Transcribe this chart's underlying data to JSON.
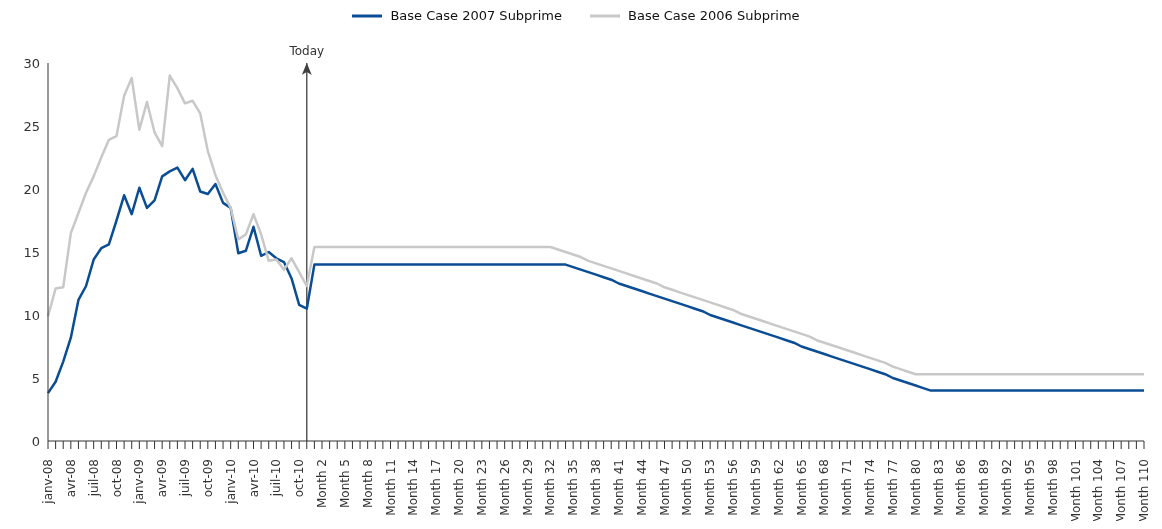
{
  "chart_data": {
    "type": "line",
    "categories": [
      "janv-08",
      null,
      null,
      "avr-08",
      null,
      null,
      "juil-08",
      null,
      null,
      "oct-08",
      null,
      null,
      "janv-09",
      null,
      null,
      "avr-09",
      null,
      null,
      "juil-09",
      null,
      null,
      "oct-09",
      null,
      null,
      "janv-10",
      null,
      null,
      "avr-10",
      null,
      null,
      "juil-10",
      null,
      null,
      "oct-10",
      null,
      null,
      "Month 2",
      null,
      null,
      "Month 5",
      null,
      null,
      "Month 8",
      null,
      null,
      "Month 11",
      null,
      null,
      "Month 14",
      null,
      null,
      "Month 17",
      null,
      null,
      "Month 20",
      null,
      null,
      "Month 23",
      null,
      null,
      "Month 26",
      null,
      null,
      "Month 29",
      null,
      null,
      "Month 32",
      null,
      null,
      "Month 35",
      null,
      null,
      "Month 38",
      null,
      null,
      "Month 41",
      null,
      null,
      "Month 44",
      null,
      null,
      "Month 47",
      null,
      null,
      "Month 50",
      null,
      null,
      "Month 53",
      null,
      null,
      "Month 56",
      null,
      null,
      "Month 59",
      null,
      null,
      "Month 62",
      null,
      null,
      "Month 65",
      null,
      null,
      "Month 68",
      null,
      null,
      "Month 71",
      null,
      null,
      "Month 74",
      null,
      null,
      "Month 77",
      null,
      null,
      "Month 80",
      null,
      null,
      "Month 83",
      null,
      null,
      "Month 86",
      null,
      null,
      "Month 89",
      null,
      null,
      "Month 92",
      null,
      null,
      "Month 95",
      null,
      null,
      "Month 98",
      null,
      null,
      "Month 101",
      null,
      null,
      "Month 104",
      null,
      null,
      "Month 107",
      null,
      null,
      "Month 110"
    ],
    "series": [
      {
        "name": "Base Case 2007 Subprime",
        "color": "#0a4d94",
        "values": [
          3.8,
          4.7,
          6.3,
          8.2,
          11.2,
          12.3,
          14.4,
          15.3,
          15.6,
          17.5,
          19.5,
          18.0,
          20.1,
          18.5,
          19.1,
          21.0,
          21.4,
          21.7,
          20.7,
          21.6,
          19.8,
          19.6,
          20.4,
          18.9,
          18.5,
          14.9,
          15.1,
          17.0,
          14.7,
          15.0,
          14.5,
          14.2,
          12.9,
          10.8,
          10.5,
          14.0,
          14.0,
          14.0,
          14.0,
          14.0,
          14.0,
          14.0,
          14.0,
          14.0,
          14.0,
          14.0,
          14.0,
          14.0,
          14.0,
          14.0,
          14.0,
          14.0,
          14.0,
          14.0,
          14.0,
          14.0,
          14.0,
          14.0,
          14.0,
          14.0,
          14.0,
          14.0,
          14.0,
          14.0,
          14.0,
          14.0,
          14.0,
          14.0,
          14.0,
          13.8,
          13.6,
          13.4,
          13.2,
          13.0,
          12.8,
          12.5,
          12.3,
          12.1,
          11.9,
          11.7,
          11.5,
          11.3,
          11.1,
          10.9,
          10.7,
          10.5,
          10.3,
          10.0,
          9.8,
          9.6,
          9.4,
          9.2,
          9.0,
          8.8,
          8.6,
          8.4,
          8.2,
          8.0,
          7.8,
          7.5,
          7.3,
          7.1,
          6.9,
          6.7,
          6.5,
          6.3,
          6.1,
          5.9,
          5.7,
          5.5,
          5.3,
          5.0,
          4.8,
          4.6,
          4.4,
          4.2,
          4.0,
          4.0,
          4.0,
          4.0,
          4.0,
          4.0,
          4.0,
          4.0,
          4.0,
          4.0,
          4.0,
          4.0,
          4.0,
          4.0,
          4.0,
          4.0,
          4.0,
          4.0,
          4.0,
          4.0,
          4.0,
          4.0,
          4.0,
          4.0,
          4.0,
          4.0,
          4.0,
          4.0,
          4.0
        ]
      },
      {
        "name": "Base Case 2006 Subprime",
        "color": "#c8c8c8",
        "values": [
          9.9,
          12.1,
          12.2,
          16.5,
          18.1,
          19.7,
          21.0,
          22.5,
          23.9,
          24.2,
          27.4,
          28.8,
          24.7,
          26.9,
          24.5,
          23.4,
          29.0,
          28.0,
          26.8,
          27.0,
          26.0,
          23.0,
          21.1,
          19.7,
          18.5,
          16.0,
          16.4,
          18.0,
          16.4,
          14.3,
          14.4,
          13.6,
          14.5,
          13.4,
          12.3,
          15.4,
          15.4,
          15.4,
          15.4,
          15.4,
          15.4,
          15.4,
          15.4,
          15.4,
          15.4,
          15.4,
          15.4,
          15.4,
          15.4,
          15.4,
          15.4,
          15.4,
          15.4,
          15.4,
          15.4,
          15.4,
          15.4,
          15.4,
          15.4,
          15.4,
          15.4,
          15.4,
          15.4,
          15.4,
          15.4,
          15.4,
          15.4,
          15.2,
          15.0,
          14.8,
          14.6,
          14.3,
          14.1,
          13.9,
          13.7,
          13.5,
          13.3,
          13.1,
          12.9,
          12.7,
          12.5,
          12.2,
          12.0,
          11.8,
          11.6,
          11.4,
          11.2,
          11.0,
          10.8,
          10.6,
          10.4,
          10.1,
          9.9,
          9.7,
          9.5,
          9.3,
          9.1,
          8.9,
          8.7,
          8.5,
          8.3,
          8.0,
          7.8,
          7.6,
          7.4,
          7.2,
          7.0,
          6.8,
          6.6,
          6.4,
          6.2,
          5.9,
          5.7,
          5.5,
          5.3,
          5.3,
          5.3,
          5.3,
          5.3,
          5.3,
          5.3,
          5.3,
          5.3,
          5.3,
          5.3,
          5.3,
          5.3,
          5.3,
          5.3,
          5.3,
          5.3,
          5.3,
          5.3,
          5.3,
          5.3,
          5.3,
          5.3,
          5.3,
          5.3,
          5.3,
          5.3,
          5.3,
          5.3,
          5.3,
          5.3
        ]
      }
    ],
    "ylim": [
      0,
      30
    ],
    "yticks": [
      0,
      5,
      10,
      15,
      20,
      25,
      30
    ],
    "legend": "top",
    "marker": "none",
    "annotations": [
      "Today"
    ]
  }
}
